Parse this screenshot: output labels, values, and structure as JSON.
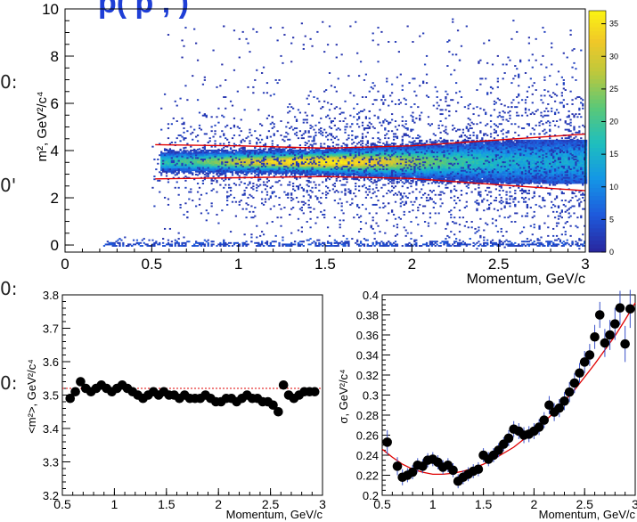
{
  "page": {
    "title_fragment": "p(   p         ,          )",
    "edge_glyphs": [
      "0:",
      "0'",
      "0:",
      "0:"
    ]
  },
  "chart_data": [
    {
      "type": "heatmap",
      "xlabel": "Momentum, GeV/c",
      "ylabel": "m², GeV²/c⁴",
      "xlim": [
        0,
        3
      ],
      "ylim": [
        -0.3,
        10
      ],
      "xticks": [
        "0",
        "0.5",
        "1",
        "1.5",
        "2",
        "2.5",
        "3"
      ],
      "yticks": [
        "0",
        "2",
        "4",
        "6",
        "8",
        "10"
      ],
      "band": {
        "center_m2": 3.5,
        "x_start": 0.55,
        "x_end": 3.0
      },
      "cut_upper": {
        "x": [
          0.52,
          1.0,
          1.5,
          2.0,
          2.5,
          3.0
        ],
        "y": [
          4.25,
          4.2,
          4.1,
          4.2,
          4.45,
          4.7
        ]
      },
      "cut_lower": {
        "x": [
          0.52,
          1.0,
          1.5,
          2.0,
          2.5,
          3.0
        ],
        "y": [
          2.8,
          2.85,
          2.9,
          2.82,
          2.55,
          2.3
        ]
      },
      "colorbar": {
        "min": 0,
        "max": 37,
        "ticks": [
          "0",
          "5",
          "10",
          "15",
          "20",
          "25",
          "30",
          "35"
        ]
      }
    },
    {
      "type": "scatter",
      "xlabel": "Momentum, GeV/c",
      "ylabel": "<m²>, GeV²/c⁴",
      "xlim": [
        0.5,
        3
      ],
      "ylim": [
        3.2,
        3.8
      ],
      "xticks": [
        "0.5",
        "1",
        "1.5",
        "2",
        "2.5",
        "3"
      ],
      "yticks": [
        "3.2",
        "3.3",
        "3.4",
        "3.5",
        "3.6",
        "3.7",
        "3.8"
      ],
      "reference_line": 3.52,
      "x": [
        0.575,
        0.625,
        0.675,
        0.725,
        0.775,
        0.825,
        0.875,
        0.925,
        0.975,
        1.025,
        1.075,
        1.125,
        1.175,
        1.225,
        1.275,
        1.325,
        1.375,
        1.425,
        1.475,
        1.525,
        1.575,
        1.625,
        1.675,
        1.725,
        1.775,
        1.825,
        1.875,
        1.925,
        1.975,
        2.025,
        2.075,
        2.125,
        2.175,
        2.225,
        2.275,
        2.325,
        2.375,
        2.425,
        2.475,
        2.525,
        2.575,
        2.625,
        2.675,
        2.725,
        2.775,
        2.825,
        2.875,
        2.925
      ],
      "y": [
        3.49,
        3.51,
        3.54,
        3.52,
        3.51,
        3.52,
        3.53,
        3.52,
        3.51,
        3.52,
        3.53,
        3.52,
        3.51,
        3.5,
        3.49,
        3.5,
        3.51,
        3.5,
        3.51,
        3.5,
        3.5,
        3.49,
        3.5,
        3.49,
        3.49,
        3.49,
        3.5,
        3.49,
        3.48,
        3.48,
        3.49,
        3.49,
        3.48,
        3.49,
        3.5,
        3.49,
        3.49,
        3.48,
        3.48,
        3.47,
        3.45,
        3.53,
        3.5,
        3.49,
        3.5,
        3.51,
        3.51,
        3.51
      ]
    },
    {
      "type": "scatter",
      "xlabel": "Momentum, GeV/c",
      "ylabel": "σ, GeV²/c⁴",
      "xlim": [
        0.5,
        3
      ],
      "ylim": [
        0.2,
        0.4
      ],
      "xticks": [
        "0.5",
        "1",
        "1.5",
        "2",
        "2.5",
        "3"
      ],
      "yticks": [
        "0.2",
        "0.22",
        "0.24",
        "0.26",
        "0.28",
        "0.3",
        "0.32",
        "0.34",
        "0.36",
        "0.38",
        "0.4"
      ],
      "fit_curve": {
        "x": [
          0.5,
          0.6,
          0.7,
          0.8,
          0.9,
          1.0,
          1.1,
          1.2,
          1.3,
          1.4,
          1.5,
          1.6,
          1.7,
          1.8,
          1.9,
          2.0,
          2.1,
          2.2,
          2.3,
          2.4,
          2.5,
          2.6,
          2.7,
          2.8,
          2.9,
          3.0
        ],
        "y": [
          0.246,
          0.238,
          0.231,
          0.226,
          0.223,
          0.221,
          0.221,
          0.222,
          0.224,
          0.227,
          0.231,
          0.236,
          0.242,
          0.248,
          0.256,
          0.264,
          0.273,
          0.283,
          0.294,
          0.305,
          0.318,
          0.331,
          0.345,
          0.359,
          0.375,
          0.392
        ]
      },
      "x": [
        0.55,
        0.65,
        0.7,
        0.75,
        0.8,
        0.85,
        0.9,
        0.95,
        1.0,
        1.05,
        1.1,
        1.15,
        1.2,
        1.25,
        1.3,
        1.35,
        1.4,
        1.45,
        1.5,
        1.55,
        1.6,
        1.65,
        1.7,
        1.75,
        1.8,
        1.85,
        1.9,
        1.95,
        2.0,
        2.05,
        2.1,
        2.15,
        2.2,
        2.25,
        2.3,
        2.35,
        2.4,
        2.45,
        2.5,
        2.55,
        2.6,
        2.65,
        2.7,
        2.75,
        2.8,
        2.85,
        2.9,
        2.95
      ],
      "y": [
        0.253,
        0.229,
        0.218,
        0.22,
        0.223,
        0.23,
        0.229,
        0.235,
        0.236,
        0.233,
        0.228,
        0.23,
        0.225,
        0.214,
        0.218,
        0.221,
        0.224,
        0.226,
        0.24,
        0.236,
        0.24,
        0.245,
        0.251,
        0.257,
        0.266,
        0.264,
        0.26,
        0.261,
        0.264,
        0.268,
        0.275,
        0.29,
        0.283,
        0.287,
        0.294,
        0.303,
        0.312,
        0.322,
        0.333,
        0.34,
        0.358,
        0.38,
        0.352,
        0.36,
        0.371,
        0.387,
        0.351,
        0.386
      ],
      "y_err": [
        0.012,
        0.009,
        0.008,
        0.007,
        0.007,
        0.007,
        0.007,
        0.007,
        0.007,
        0.007,
        0.007,
        0.007,
        0.007,
        0.007,
        0.007,
        0.007,
        0.007,
        0.007,
        0.007,
        0.007,
        0.007,
        0.007,
        0.007,
        0.008,
        0.008,
        0.008,
        0.008,
        0.008,
        0.008,
        0.008,
        0.008,
        0.009,
        0.009,
        0.009,
        0.009,
        0.01,
        0.01,
        0.01,
        0.011,
        0.011,
        0.012,
        0.013,
        0.014,
        0.015,
        0.016,
        0.017,
        0.018,
        0.019
      ]
    }
  ]
}
